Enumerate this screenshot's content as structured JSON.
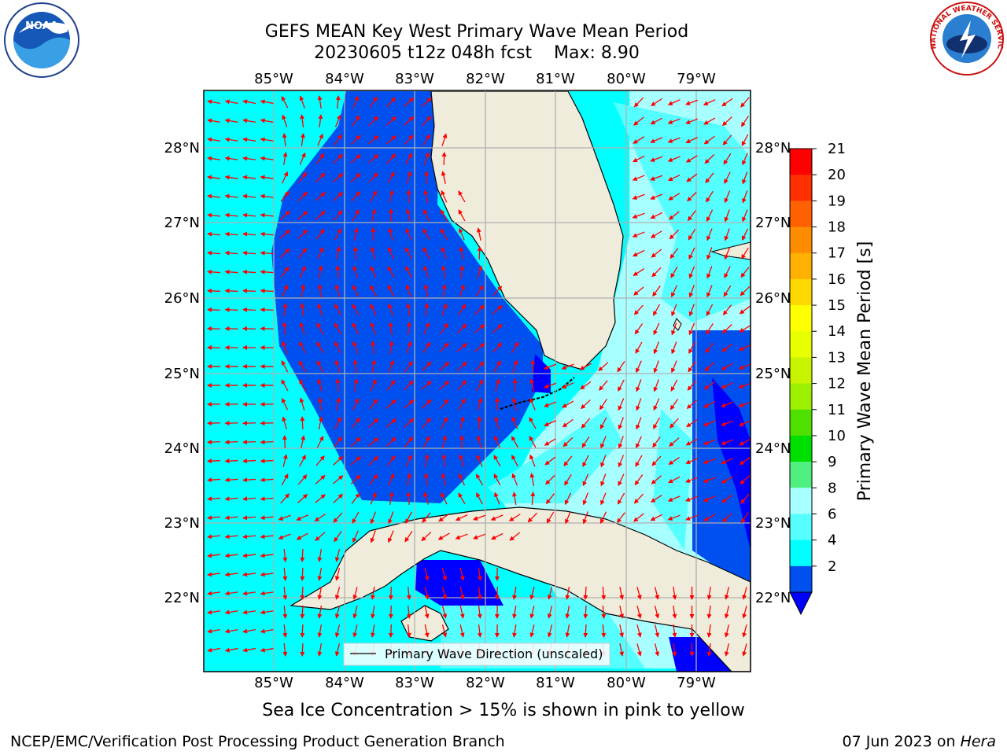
{
  "title": {
    "line1": "GEFS MEAN Key West Primary Wave Mean Period",
    "line2": "20230605 t12z 048h fcst    Max: 8.90"
  },
  "logos": {
    "left": {
      "icon": "noaa-logo",
      "text": "NOAA"
    },
    "right": {
      "icon": "nws-logo",
      "text": "NATIONAL WEATHER SERVICE"
    }
  },
  "map": {
    "lon_labels": [
      "85°W",
      "84°W",
      "83°W",
      "82°W",
      "81°W",
      "80°W",
      "79°W"
    ],
    "lat_labels": [
      "28°N",
      "27°N",
      "26°N",
      "25°N",
      "24°N",
      "23°N",
      "22°N"
    ],
    "legend_label": "Primary Wave Direction (unscaled)",
    "colors": {
      "land": "#efecdc",
      "coast": "#000000",
      "grid": "#b0b0b0",
      "arrow": "#ff0000",
      "period_2_4": "#0050f0",
      "period_4_6": "#00ffff",
      "period_6_8": "#55ffff",
      "period_8_9": "#a8ffff",
      "period_below_2": "#0000ff"
    }
  },
  "colorbar": {
    "label": "Primary Wave Mean Period [s]",
    "ticks": [
      "21",
      "20",
      "19",
      "18",
      "17",
      "16",
      "15",
      "14",
      "13",
      "12",
      "11",
      "10",
      "9",
      "8",
      "6",
      "4",
      "2"
    ],
    "colors_top_to_bottom": [
      "#ff0000",
      "#ff3000",
      "#ff6000",
      "#ff8c00",
      "#ffb000",
      "#ffd800",
      "#ffff00",
      "#e8ff00",
      "#c8f400",
      "#9cf000",
      "#50e000",
      "#00e000",
      "#50f080",
      "#a8ffff",
      "#55ffff",
      "#00ffff",
      "#0050f0"
    ],
    "under_color": "#0000ff"
  },
  "caption": "Sea Ice Concentration > 15% is shown in pink to yellow",
  "footer": {
    "credit": "NCEP/EMC/Verification Post Processing Product Generation Branch",
    "date": "07 Jun 2023 on ",
    "machine": "Hera"
  }
}
